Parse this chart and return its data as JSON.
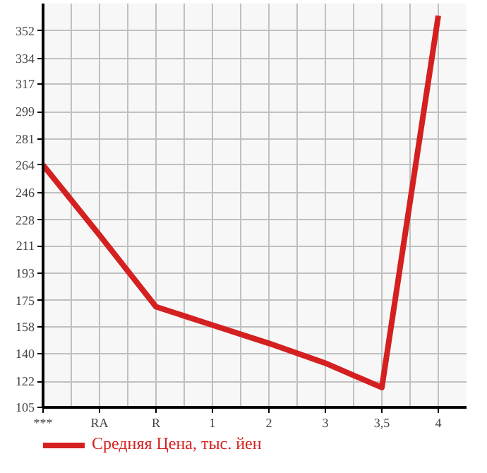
{
  "chart_data": {
    "type": "line",
    "categories": [
      "***",
      "RA",
      "R",
      "1",
      "2",
      "3",
      "3,5",
      "4"
    ],
    "series": [
      {
        "name": "Средняя Цена, тыс. йен",
        "color": "#d42020",
        "values": [
          264,
          218,
          171,
          159,
          147,
          134,
          118,
          362
        ]
      }
    ],
    "ylim": [
      105,
      370
    ],
    "yticks": [
      105,
      122,
      140,
      158,
      175,
      193,
      211,
      228,
      246,
      264,
      281,
      299,
      317,
      334,
      352
    ],
    "grid": true,
    "legend": "bottom",
    "marker": "none",
    "line_style": "solid"
  }
}
